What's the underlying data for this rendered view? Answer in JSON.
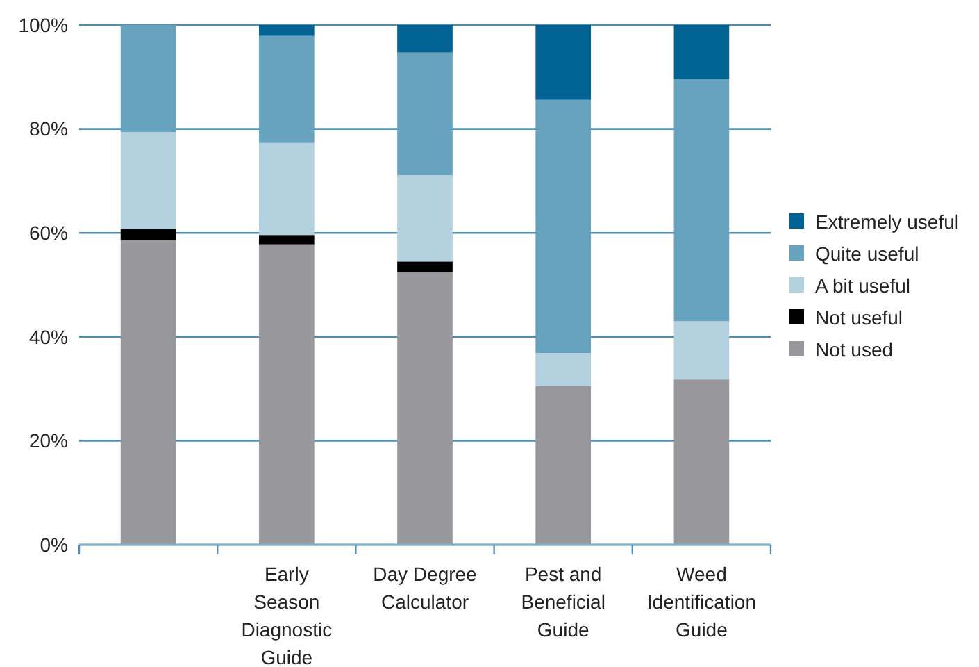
{
  "chart_data": {
    "type": "bar",
    "stacked": true,
    "categories": [
      null,
      "Early Season Diagnostic Guide",
      "Day Degree Calculator",
      "Pest and Beneficial Guide",
      "Weed Identification Guide"
    ],
    "series": [
      {
        "name": "Not used",
        "color": "#98979b",
        "values": [
          58.6,
          57.8,
          52.4,
          30.5,
          31.8
        ]
      },
      {
        "name": "Not useful",
        "color": "#000000",
        "values": [
          2.1,
          1.8,
          2.1,
          0,
          0
        ]
      },
      {
        "name": "A bit useful",
        "color": "#b3d1df",
        "values": [
          18.7,
          17.7,
          16.6,
          6.4,
          11.2
        ]
      },
      {
        "name": "Quite useful",
        "color": "#67a2bf",
        "values": [
          20.6,
          20.6,
          23.6,
          48.7,
          46.6
        ]
      },
      {
        "name": "Extremely useful",
        "color": "#006394",
        "values": [
          0,
          2.1,
          5.3,
          14.4,
          10.4
        ]
      }
    ],
    "ylim": [
      0,
      100
    ],
    "yticks": [
      {
        "value": 0,
        "label": "0%"
      },
      {
        "value": 20,
        "label": "20%"
      },
      {
        "value": 40,
        "label": "40%"
      },
      {
        "value": 60,
        "label": "60%"
      },
      {
        "value": 80,
        "label": "80%"
      },
      {
        "value": 100,
        "label": "100%"
      }
    ],
    "grid": "y",
    "legend": "right"
  }
}
